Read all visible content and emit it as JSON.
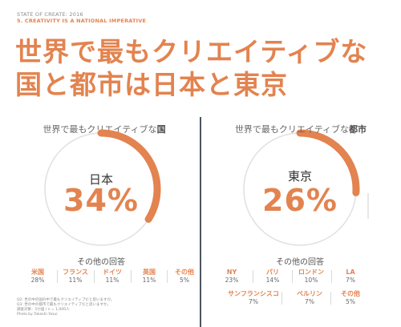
{
  "header": {
    "report": "STATE OF CREATE: 2016",
    "section": "5. CREATIVITY IS A NATIONAL IMPERATIVE",
    "headline_line1": "世界で最もクリエイティブな",
    "headline_line2": "国と都市は日本と東京"
  },
  "left_panel": {
    "title_prefix": "世界で最もクリエイティブな",
    "title_bold": "国",
    "ring_label": "日本",
    "percent_label": "34%",
    "other_title": "その他の回答"
  },
  "right_panel": {
    "title_prefix": "世界で最もクリエイティブな",
    "title_bold": "都市",
    "ring_label": "東京",
    "percent_label": "26%",
    "other_title": "その他の回答"
  },
  "footnote": {
    "line1": "Q2: 世の中の国の中で最もクリエイティブだと思いますか。",
    "line2": "Q3: 世の中の都市で最もクリエイティブだと思いますか。",
    "line3": "調査対象：5か国 / n = 1,000人",
    "line4": "Photo by Takashi Yasui"
  },
  "colors": {
    "accent": "#e3834f",
    "ring": "#e0e0e0",
    "divider": "#4b5563"
  },
  "chart_data": [
    {
      "type": "pie",
      "title": "世界で最もクリエイティブな国",
      "main": {
        "label": "日本",
        "value": 34
      },
      "others": [
        {
          "label": "米国",
          "value": 28
        },
        {
          "label": "フランス",
          "value": 11
        },
        {
          "label": "ドイツ",
          "value": 11
        },
        {
          "label": "英国",
          "value": 11
        },
        {
          "label": "その他",
          "value": 5
        }
      ]
    },
    {
      "type": "pie",
      "title": "世界で最もクリエイティブな都市",
      "main": {
        "label": "東京",
        "value": 26
      },
      "others": [
        {
          "label": "NY",
          "value": 23
        },
        {
          "label": "パリ",
          "value": 14
        },
        {
          "label": "ロンドン",
          "value": 10
        },
        {
          "label": "LA",
          "value": 7
        },
        {
          "label": "サンフランシスコ",
          "value": 7
        },
        {
          "label": "ベルリン",
          "value": 7
        },
        {
          "label": "その他",
          "value": 5
        }
      ]
    }
  ]
}
